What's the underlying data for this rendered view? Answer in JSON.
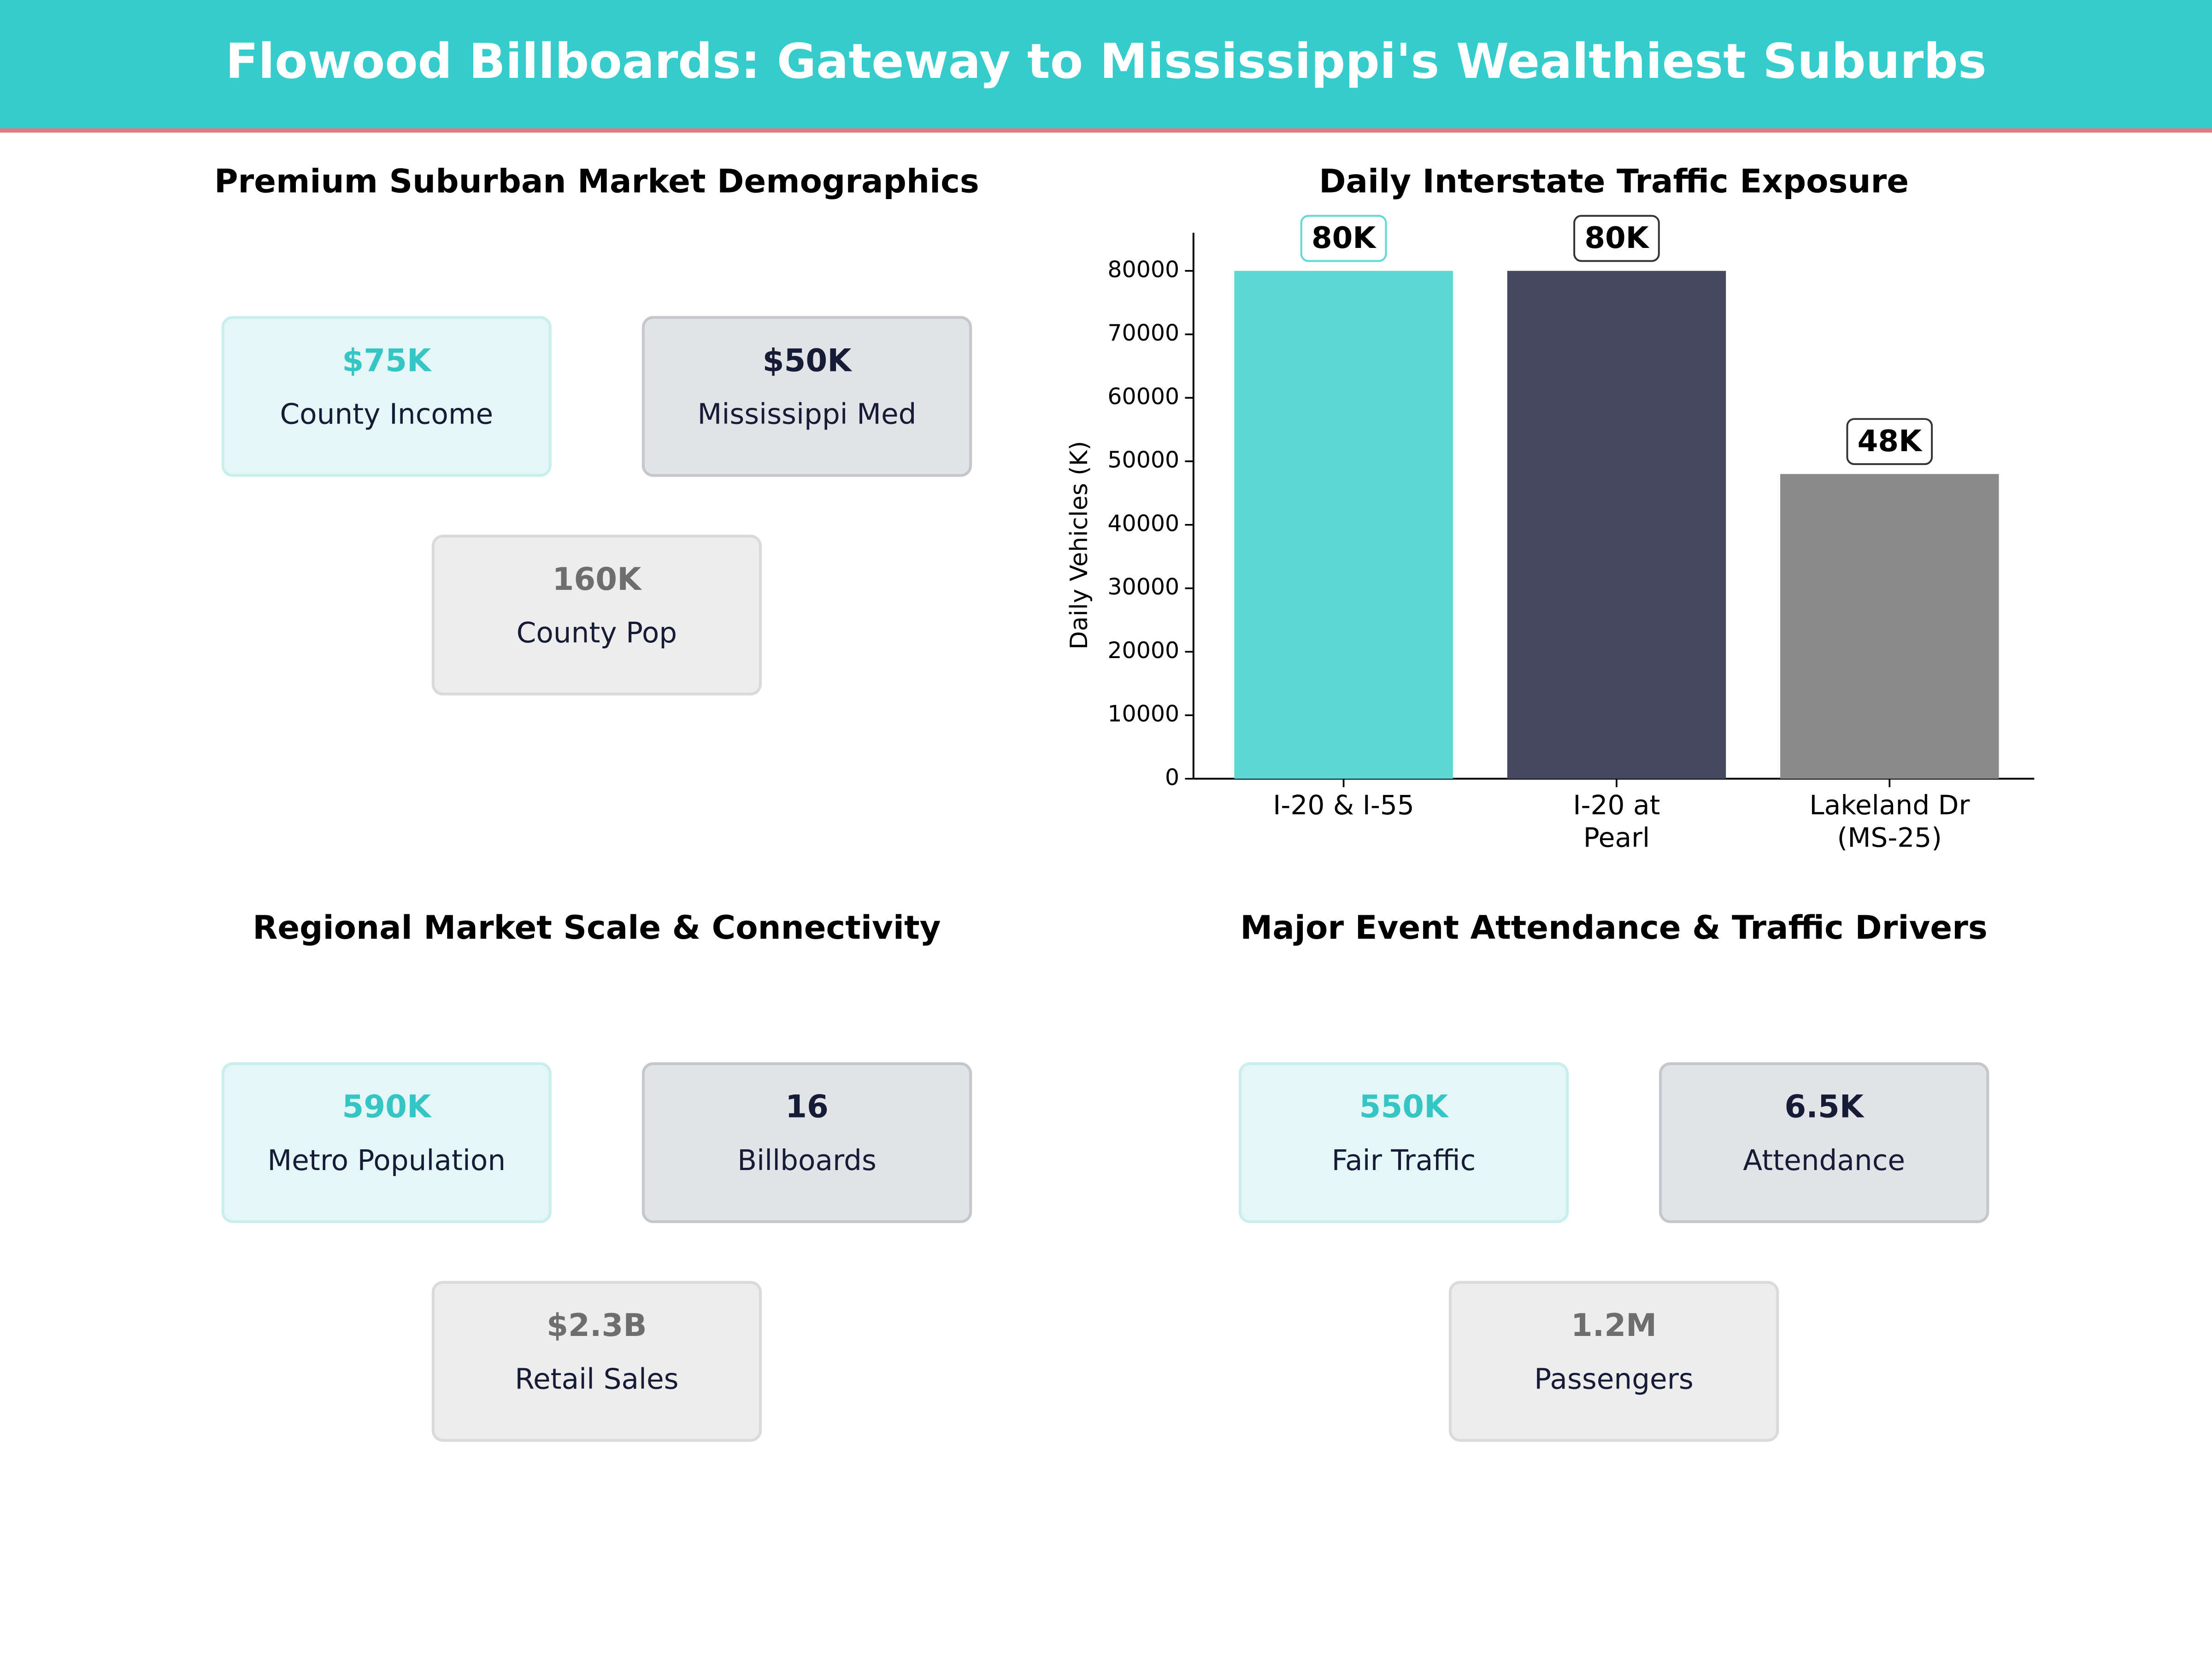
{
  "header": {
    "title": "Flowood Billboards: Gateway to Mississippi's Wealthiest Suburbs"
  },
  "panels": [
    {
      "title": "Premium Suburban Market Demographics",
      "cards": [
        {
          "value": "$75K",
          "label": "County Income"
        },
        {
          "value": "$50K",
          "label": "Mississippi Med"
        },
        {
          "value": "160K",
          "label": "County Pop"
        }
      ]
    },
    {
      "title": "Regional Market Scale & Connectivity",
      "cards": [
        {
          "value": "590K",
          "label": "Metro Population"
        },
        {
          "value": "16",
          "label": "Billboards"
        },
        {
          "value": "$2.3B",
          "label": "Retail Sales"
        }
      ]
    },
    {
      "title": "Major Event Attendance & Traffic Drivers",
      "cards": [
        {
          "value": "550K",
          "label": "Fair Traffic"
        },
        {
          "value": "6.5K",
          "label": "Attendance"
        },
        {
          "value": "1.2M",
          "label": "Passengers"
        }
      ]
    }
  ],
  "chart_data": {
    "type": "bar",
    "title": "Daily Interstate Traffic Exposure",
    "y_label": "Daily Vehicles (K)",
    "categories": [
      "I-20 & I-55",
      "I-20 at\nPearl",
      "Lakeland Dr\n(MS-25)"
    ],
    "values": [
      80000,
      80000,
      48000
    ],
    "value_labels": [
      "80K",
      "80K",
      "48K"
    ],
    "colors": [
      "#5cd8d5",
      "#45495f",
      "#8a8a8a"
    ],
    "ylim": [
      0,
      86000
    ],
    "yticks": [
      0,
      10000,
      20000,
      30000,
      40000,
      50000,
      60000,
      70000,
      80000
    ]
  }
}
